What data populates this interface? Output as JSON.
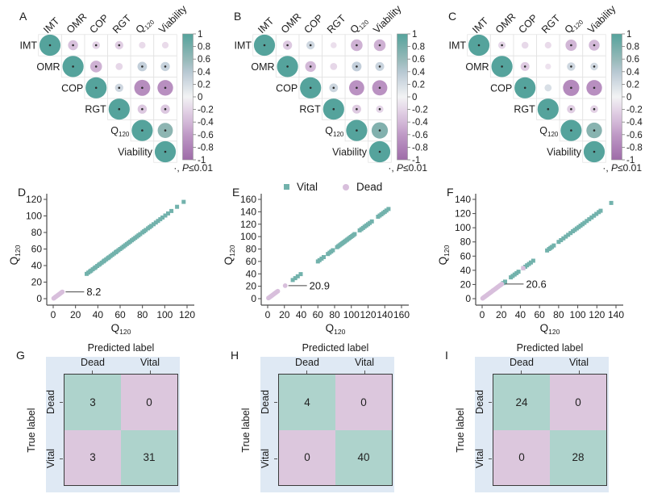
{
  "colors": {
    "teal_strong": "#55a39c",
    "purple_strong": "#9e6ca8",
    "scatter_teal": "#72b2ac",
    "scatter_pink": "#d8bfdc",
    "cm_teal": "#aed3cc",
    "cm_pink": "#dcc7dd",
    "cm_panel_bg": "#dfe9f4",
    "text": "#1a1a1a"
  },
  "legend": {
    "vital": "Vital",
    "dead": "Dead"
  },
  "chart_data": [
    {
      "id": "A",
      "panel_label": "A",
      "type": "correlation-matrix",
      "labels": [
        {
          "base": "IMT"
        },
        {
          "base": "OMR"
        },
        {
          "base": "COP"
        },
        {
          "base": "RGT"
        },
        {
          "base": "Q",
          "sub": "120"
        },
        {
          "base": "Viability"
        }
      ],
      "values": [
        [
          1,
          -0.35,
          -0.22,
          -0.25,
          -0.15,
          -0.15
        ],
        [
          null,
          1,
          -0.45,
          -0.18,
          0.32,
          0.3
        ],
        [
          null,
          null,
          1,
          0.25,
          -0.7,
          -0.68
        ],
        [
          null,
          null,
          null,
          1,
          -0.3,
          -0.3
        ],
        [
          null,
          null,
          null,
          null,
          1,
          0.65
        ],
        [
          null,
          null,
          null,
          null,
          null,
          1
        ]
      ],
      "colorbar_ticks": [
        "1",
        "0.8",
        "0.6",
        "0.4",
        "0.2",
        "0",
        "-0.2",
        "-0.4",
        "-0.6",
        "-0.8",
        "-1"
      ],
      "note_marker": "·, ",
      "note_italic": "P",
      "note_rest": "≤0.01"
    },
    {
      "id": "B",
      "panel_label": "B",
      "type": "correlation-matrix",
      "labels": [
        {
          "base": "IMT"
        },
        {
          "base": "OMR"
        },
        {
          "base": "COP"
        },
        {
          "base": "RGT"
        },
        {
          "base": "Q",
          "sub": "120"
        },
        {
          "base": "Viability"
        }
      ],
      "values": [
        [
          1,
          -0.3,
          0.25,
          -0.12,
          -0.45,
          -0.45
        ],
        [
          null,
          1,
          -0.4,
          -0.18,
          0.33,
          0.28
        ],
        [
          null,
          null,
          1,
          0.27,
          -0.65,
          -0.65
        ],
        [
          null,
          null,
          null,
          1,
          -0.28,
          -0.2
        ],
        [
          null,
          null,
          null,
          null,
          1,
          0.72
        ],
        [
          null,
          null,
          null,
          null,
          null,
          1
        ]
      ],
      "colorbar_ticks": [
        "1",
        "0.8",
        "0.6",
        "0.4",
        "0.2",
        "0",
        "-0.2",
        "-0.4",
        "-0.6",
        "-0.8",
        "-1"
      ],
      "note_marker": "·, ",
      "note_italic": "P",
      "note_rest": "≤0.01"
    },
    {
      "id": "C",
      "panel_label": "C",
      "type": "correlation-matrix",
      "labels": [
        {
          "base": "IMT"
        },
        {
          "base": "OMR"
        },
        {
          "base": "COP"
        },
        {
          "base": "RGT"
        },
        {
          "base": "Q",
          "sub": "120"
        },
        {
          "base": "Viability"
        }
      ],
      "values": [
        [
          1,
          -0.2,
          -0.17,
          -0.15,
          -0.42,
          -0.4
        ],
        [
          null,
          1,
          -0.28,
          -0.1,
          0.25,
          0.22
        ],
        [
          null,
          null,
          1,
          0.18,
          -0.72,
          -0.68
        ],
        [
          null,
          null,
          null,
          1,
          -0.25,
          -0.22
        ],
        [
          null,
          null,
          null,
          null,
          1,
          0.68
        ],
        [
          null,
          null,
          null,
          null,
          null,
          1
        ]
      ],
      "colorbar_ticks": [
        "1",
        "0.8",
        "0.6",
        "0.4",
        "0.2",
        "0",
        "-0.2",
        "-0.4",
        "-0.6",
        "-0.8",
        "-1"
      ],
      "note_marker": "·, ",
      "note_italic": "P",
      "note_rest": "≤0.01"
    },
    {
      "id": "D",
      "panel_label": "D",
      "type": "scatter",
      "on_identity_line": true,
      "xlabel": {
        "base": "Q",
        "sub": "120"
      },
      "ylabel": {
        "base": "Q",
        "sub": "120"
      },
      "xmax": 120,
      "ticks": [
        0,
        20,
        40,
        60,
        80,
        100,
        120
      ],
      "annotation": {
        "text": "8.2",
        "value": 8.2
      },
      "series": [
        {
          "name": "Vital",
          "marker": "square",
          "color": "#72b2ac",
          "values": [
            30,
            31.5,
            33,
            34,
            35.5,
            37,
            38,
            39.5,
            41,
            42,
            43.5,
            45,
            46,
            47.5,
            49,
            50,
            51.5,
            53,
            54.5,
            56,
            57,
            58.5,
            60,
            61.5,
            63,
            64.5,
            66,
            67.5,
            69,
            70.5,
            72,
            73.5,
            75,
            76.5,
            78,
            80,
            81.5,
            83,
            85,
            86.5,
            88,
            90,
            92,
            94,
            96,
            98,
            100.5,
            103,
            106,
            111,
            117
          ]
        },
        {
          "name": "Dead",
          "marker": "circle",
          "color": "#d8bfdc",
          "values": [
            0.4,
            1,
            1.6,
            2.2,
            2.8,
            3.4,
            4,
            4.6,
            5.2,
            5.8,
            6.4,
            7,
            7.6,
            8.2
          ]
        }
      ]
    },
    {
      "id": "E",
      "panel_label": "E",
      "type": "scatter",
      "on_identity_line": true,
      "xlabel": {
        "base": "Q",
        "sub": "120"
      },
      "ylabel": {
        "base": "Q",
        "sub": "120"
      },
      "xmax": 160,
      "ticks": [
        0,
        20,
        40,
        60,
        80,
        100,
        120,
        140,
        160
      ],
      "annotation": {
        "text": "20.9",
        "value": 20.9
      },
      "series": [
        {
          "name": "Vital",
          "marker": "square",
          "color": "#72b2ac",
          "values": [
            30,
            33,
            36,
            39.5,
            60,
            62,
            64.5,
            67,
            72,
            74,
            76,
            78,
            83,
            84.5,
            86,
            87.5,
            89,
            90.5,
            92,
            93.5,
            95,
            96.5,
            98,
            99.5,
            101,
            102.5,
            104,
            110,
            112,
            114,
            116,
            118,
            120,
            122,
            124.5,
            132,
            134,
            136,
            138,
            140,
            142,
            144.5
          ]
        },
        {
          "name": "Dead",
          "marker": "circle",
          "color": "#d8bfdc",
          "values": [
            1,
            2,
            3,
            4,
            5,
            6,
            7,
            8,
            9,
            10,
            11,
            12,
            20.9
          ]
        }
      ]
    },
    {
      "id": "F",
      "panel_label": "F",
      "type": "scatter",
      "on_identity_line": true,
      "xlabel": {
        "base": "Q",
        "sub": "120"
      },
      "ylabel": {
        "base": "Q",
        "sub": "120"
      },
      "xmax": 140,
      "ticks": [
        0,
        20,
        40,
        60,
        80,
        100,
        120,
        140
      ],
      "annotation": {
        "text": "20.6",
        "value": 20.6
      },
      "series": [
        {
          "name": "Vital",
          "marker": "square",
          "color": "#72b2ac",
          "values": [
            22,
            24,
            30,
            32,
            34,
            36,
            38,
            43,
            45,
            47,
            49,
            51,
            53.5,
            68,
            70,
            71.5,
            73,
            75,
            80,
            82.5,
            85,
            87.5,
            90,
            92.5,
            95,
            97,
            99,
            101,
            103,
            105,
            107,
            109.5,
            112,
            114.5,
            117,
            119.5,
            122,
            124,
            135
          ]
        },
        {
          "name": "Dead",
          "marker": "circle",
          "color": "#d8bfdc",
          "values": [
            0.5,
            1.2,
            1.9,
            2.6,
            3.3,
            4,
            4.7,
            5.4,
            6.1,
            6.8,
            7.5,
            8.2,
            8.9,
            9.6,
            10.3,
            11,
            11.7,
            12.4,
            13.1,
            13.8,
            14.5,
            15.2,
            16,
            16.8,
            17.6,
            18.4,
            19.2,
            20,
            20.6,
            43
          ]
        }
      ]
    },
    {
      "id": "G",
      "panel_label": "G",
      "type": "confusion-matrix",
      "title": "Predicted label",
      "axis_label": "True label",
      "col_labels": [
        "Dead",
        "Vital"
      ],
      "row_labels": [
        "Dead",
        "Vital"
      ],
      "values": [
        [
          3,
          0
        ],
        [
          3,
          31
        ]
      ]
    },
    {
      "id": "H",
      "panel_label": "H",
      "type": "confusion-matrix",
      "title": "Predicted label",
      "axis_label": "True label",
      "col_labels": [
        "Dead",
        "Vital"
      ],
      "row_labels": [
        "Dead",
        "Vital"
      ],
      "values": [
        [
          4,
          0
        ],
        [
          0,
          40
        ]
      ]
    },
    {
      "id": "I",
      "panel_label": "I",
      "type": "confusion-matrix",
      "title": "Predicted label",
      "axis_label": "True label",
      "col_labels": [
        "Dead",
        "Vital"
      ],
      "row_labels": [
        "Dead",
        "Vital"
      ],
      "values": [
        [
          24,
          0
        ],
        [
          0,
          28
        ]
      ]
    }
  ]
}
